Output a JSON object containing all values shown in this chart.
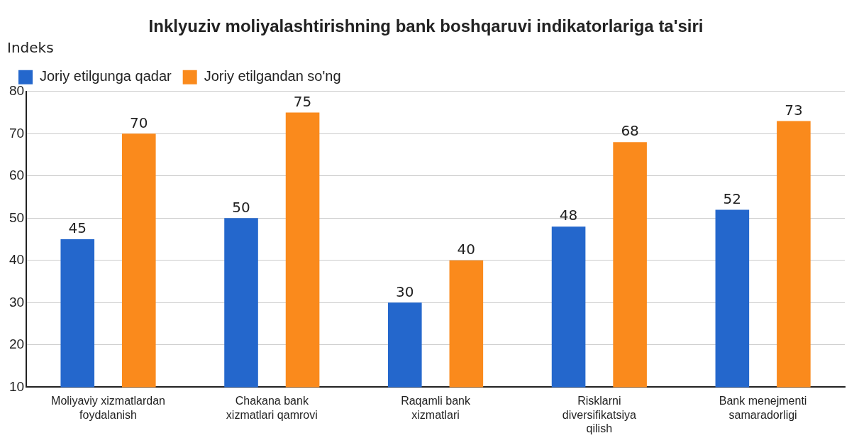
{
  "chart_data": {
    "type": "bar",
    "title": "Inklyuziv moliyalashtirishning bank boshqaruvi indikatorlariga ta'siri",
    "ylabel": "Indeks",
    "categories": [
      "Moliyaviy xizmatlardan foydalanish",
      "Chakana bank xizmatlari qamrovi",
      "Raqamli bank xizmatlari",
      "Risklarni diversifikatsiya qilish",
      "Bank menejmenti samaradorligi"
    ],
    "series": [
      {
        "name": "Joriy etilgunga qadar",
        "color": "#2467cc",
        "values": [
          45,
          50,
          30,
          48,
          52
        ]
      },
      {
        "name": "Joriy etilgandan so'ng",
        "color": "#fa8a1c",
        "values": [
          70,
          75,
          40,
          68,
          73
        ]
      }
    ],
    "ylim": [
      10,
      80
    ],
    "yticks": [
      10,
      20,
      30,
      40,
      50,
      60,
      70,
      80
    ],
    "grid": "y",
    "legend": "top left",
    "data_labels": true
  }
}
